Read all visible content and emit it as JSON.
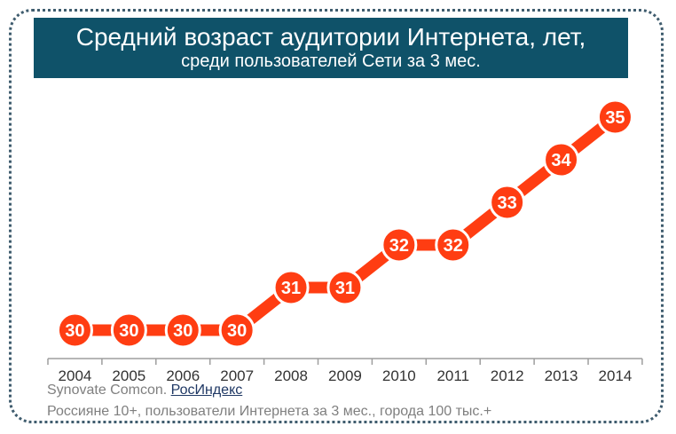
{
  "header": {
    "title": "Средний возраст аудитории Интернета, лет,",
    "subtitle": "среди пользователей Сети за 3 мес."
  },
  "chart_data": {
    "type": "line",
    "categories": [
      "2004",
      "2005",
      "2006",
      "2007",
      "2008",
      "2009",
      "2010",
      "2011",
      "2012",
      "2013",
      "2014"
    ],
    "values": [
      30,
      30,
      30,
      30,
      31,
      31,
      32,
      32,
      33,
      34,
      35
    ],
    "labels": [
      "30",
      "30",
      "30",
      "30",
      "31",
      "31",
      "32",
      "32",
      "33",
      "34",
      "35"
    ],
    "ylim": [
      29.5,
      35.5
    ],
    "grid": false,
    "line_color": "#ff3d12",
    "marker_color": "#ff3d12",
    "marker_text_color": "#ffffff"
  },
  "footer": {
    "source_prefix": "Synovate Comcon. ",
    "source_link": "РосИндекс",
    "note": "Россияне 10+, пользователи Интернета за 3 мес., города 100 тыс.+"
  }
}
